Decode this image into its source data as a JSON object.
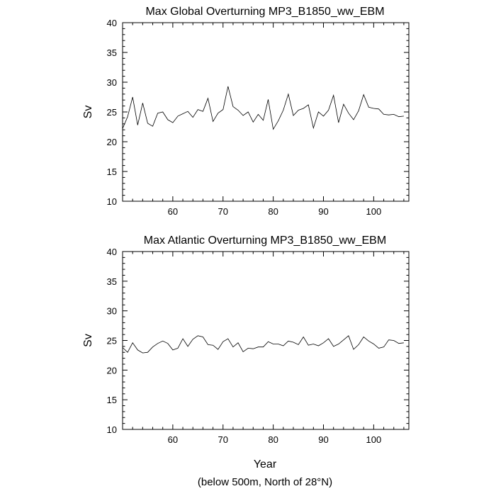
{
  "chart_data": [
    {
      "type": "line",
      "title": "Max Global Overturning MP3_B1850_ww_EBM",
      "xlabel": "",
      "ylabel": "Sv",
      "xlim": [
        50,
        107
      ],
      "ylim": [
        10,
        40
      ],
      "xticks": [
        60,
        70,
        80,
        90,
        100
      ],
      "yticks": [
        10,
        15,
        20,
        25,
        30,
        35,
        40
      ],
      "grid": false,
      "series": [
        {
          "x": [
            50,
            51,
            52,
            53,
            54,
            55,
            56,
            57,
            58,
            59,
            60,
            61,
            62,
            63,
            64,
            65,
            66,
            67,
            68,
            69,
            70,
            71,
            72,
            73,
            74,
            75,
            76,
            77,
            78,
            79,
            80,
            81,
            82,
            83,
            84,
            85,
            86,
            87,
            88,
            89,
            90,
            91,
            92,
            93,
            94,
            95,
            96,
            97,
            98,
            99,
            100,
            101,
            102,
            103,
            104,
            105,
            106
          ],
          "values": [
            22.2,
            24.2,
            27.5,
            22.8,
            26.5,
            23.1,
            22.6,
            24.8,
            25.0,
            23.7,
            23.2,
            24.3,
            24.7,
            25.1,
            24.1,
            25.4,
            25.1,
            27.3,
            23.4,
            24.8,
            25.4,
            29.3,
            25.9,
            25.3,
            24.4,
            25.0,
            23.3,
            24.6,
            23.6,
            27.1,
            22.1,
            23.5,
            25.3,
            28.0,
            24.4,
            25.3,
            25.6,
            26.2,
            22.3,
            25.0,
            24.3,
            25.3,
            27.8,
            23.2,
            26.3,
            24.8,
            23.7,
            25.2,
            27.9,
            25.8,
            25.6,
            25.5,
            24.6,
            24.5,
            24.6,
            24.2,
            24.3
          ]
        }
      ]
    },
    {
      "type": "line",
      "title": "Max Atlantic Overturning MP3_B1850_ww_EBM",
      "xlabel": "Year",
      "ylabel": "Sv",
      "xlim": [
        50,
        107
      ],
      "ylim": [
        10,
        40
      ],
      "xticks": [
        60,
        70,
        80,
        90,
        100
      ],
      "yticks": [
        10,
        15,
        20,
        25,
        30,
        35,
        40
      ],
      "grid": false,
      "series": [
        {
          "x": [
            50,
            51,
            52,
            53,
            54,
            55,
            56,
            57,
            58,
            59,
            60,
            61,
            62,
            63,
            64,
            65,
            66,
            67,
            68,
            69,
            70,
            71,
            72,
            73,
            74,
            75,
            76,
            77,
            78,
            79,
            80,
            81,
            82,
            83,
            84,
            85,
            86,
            87,
            88,
            89,
            90,
            91,
            92,
            93,
            94,
            95,
            96,
            97,
            98,
            99,
            100,
            101,
            102,
            103,
            104,
            105,
            106
          ],
          "values": [
            23.8,
            23.0,
            24.6,
            23.4,
            22.9,
            23.0,
            23.9,
            24.5,
            24.9,
            24.5,
            23.4,
            23.7,
            25.3,
            24.0,
            25.2,
            25.8,
            25.6,
            24.3,
            24.2,
            23.5,
            24.8,
            25.3,
            23.9,
            24.6,
            23.1,
            23.7,
            23.6,
            23.9,
            23.9,
            24.8,
            24.4,
            24.4,
            24.1,
            24.9,
            24.7,
            24.3,
            25.6,
            24.2,
            24.4,
            24.1,
            24.6,
            25.3,
            24.0,
            24.4,
            25.1,
            25.8,
            23.5,
            24.3,
            25.6,
            24.9,
            24.4,
            23.7,
            23.9,
            25.1,
            25.0,
            24.5,
            24.6
          ]
        }
      ]
    }
  ],
  "footer": "(below 500m, North of 28°N)"
}
